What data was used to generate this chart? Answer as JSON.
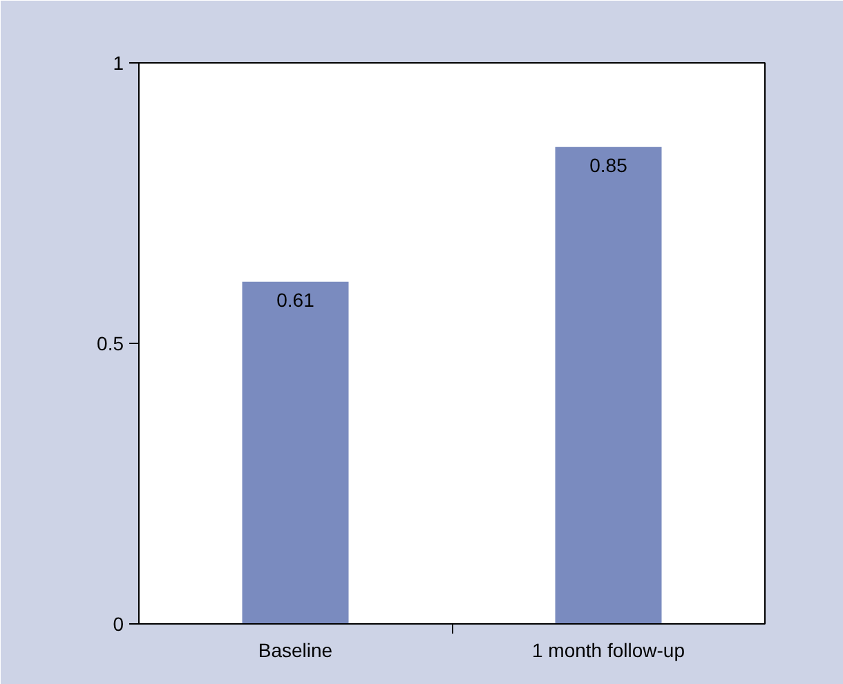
{
  "chart_data": {
    "type": "bar",
    "categories": [
      "Baseline",
      "1 month follow-up"
    ],
    "values": [
      0.61,
      0.85
    ],
    "color": "#7a8bbf",
    "ylim": [
      0,
      1
    ],
    "yticks": [
      0,
      0.5,
      1
    ],
    "data_labels": true,
    "grid": false
  }
}
